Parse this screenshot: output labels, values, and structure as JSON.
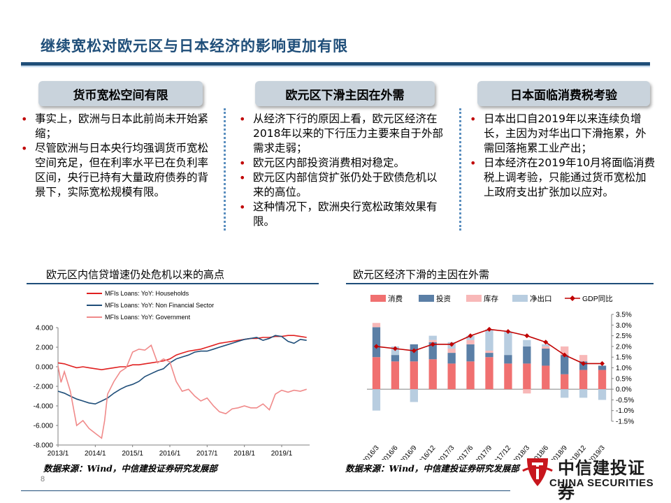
{
  "title": "继续宽松对欧元区与日本经济的影响更加有限",
  "columns": [
    {
      "header": "货币宽松空间有限",
      "bullets": [
        "事实上，欧洲与日本此前尚未开始紧缩；",
        "尽管欧洲与日本央行均强调货币宽松空间充足，但在利率水平已在负利率区间，央行已持有大量政府债券的背景下，实际宽松规模有限。"
      ]
    },
    {
      "header": "欧元区下滑主因在外需",
      "bullets": [
        "从经济下行的原因上看，欧元区经济在2018年以来的下行压力主要来自于外部需求走弱；",
        "欧元区内部投资消费相对稳定。",
        "欧元区内部信贷扩张仍处于欧债危机以来的高位。",
        "这种情况下，欧洲央行宽松政策效果有限。"
      ]
    },
    {
      "header": "日本面临消费税考验",
      "bullets": [
        "日本出口自2019年以来连续负增长，主因为对华出口下滑拖累，外需回落拖累工业产出；",
        "日本经济在2019年10月将面临消费税上调考验，只能通过货币宽松加上政府支出扩张加以应对。"
      ]
    }
  ],
  "chart_left_title": "欧元区内信贷增速仍处危机以来的高点",
  "chart_right_title": "欧元区经济下滑的主因在外需",
  "source_left": "数据来源：Wind，中信建投证券研究发展部",
  "source_right": "数据来源：Wind，中信建投证券研究发展部",
  "page_number": "8",
  "logo": {
    "cn": "中信建投证券",
    "en": "CHINA SECURITIES"
  },
  "chart_data": [
    {
      "type": "line",
      "x_ticks": [
        "2013/1",
        "2014/1",
        "2015/1",
        "2016/1",
        "2017/1",
        "2018/1",
        "2019/1"
      ],
      "y_ticks": [
        "4.000",
        "2.000",
        "0.000",
        "-2.000",
        "-4.000",
        "-6.000",
        "-8.000"
      ],
      "ylim": [
        -8,
        4
      ],
      "x_range": [
        2013.0,
        2019.75
      ],
      "legend_position": "top",
      "series": [
        {
          "name": "MFIs Loans: YoY: Households",
          "color": "#e02020",
          "points": [
            [
              2013.0,
              0.4
            ],
            [
              2013.17,
              0.3
            ],
            [
              2013.33,
              0.1
            ],
            [
              2013.5,
              -0.1
            ],
            [
              2013.67,
              0.0
            ],
            [
              2013.83,
              -0.1
            ],
            [
              2014.0,
              -0.2
            ],
            [
              2014.17,
              -0.3
            ],
            [
              2014.33,
              -0.2
            ],
            [
              2014.5,
              -0.1
            ],
            [
              2014.67,
              0.0
            ],
            [
              2014.83,
              0.0
            ],
            [
              2015.0,
              0.2
            ],
            [
              2015.17,
              0.2
            ],
            [
              2015.33,
              0.3
            ],
            [
              2015.5,
              0.4
            ],
            [
              2015.67,
              0.5
            ],
            [
              2015.83,
              0.6
            ],
            [
              2016.0,
              0.8
            ],
            [
              2016.17,
              1.2
            ],
            [
              2016.33,
              1.4
            ],
            [
              2016.5,
              1.6
            ],
            [
              2016.67,
              1.7
            ],
            [
              2016.83,
              1.8
            ],
            [
              2017.0,
              2.0
            ],
            [
              2017.17,
              2.2
            ],
            [
              2017.33,
              2.4
            ],
            [
              2017.5,
              2.5
            ],
            [
              2017.67,
              2.6
            ],
            [
              2017.83,
              2.7
            ],
            [
              2018.0,
              2.8
            ],
            [
              2018.17,
              2.9
            ],
            [
              2018.33,
              2.9
            ],
            [
              2018.5,
              3.0
            ],
            [
              2018.67,
              3.0
            ],
            [
              2018.83,
              3.1
            ],
            [
              2019.0,
              3.1
            ],
            [
              2019.17,
              3.2
            ],
            [
              2019.33,
              3.2
            ],
            [
              2019.5,
              3.1
            ],
            [
              2019.67,
              3.0
            ]
          ]
        },
        {
          "name": "MFIs Loans: YoY: Non Financial Sector",
          "color": "#1f4e79",
          "points": [
            [
              2013.0,
              -2.5
            ],
            [
              2013.17,
              -2.7
            ],
            [
              2013.33,
              -3.0
            ],
            [
              2013.5,
              -3.3
            ],
            [
              2013.67,
              -3.5
            ],
            [
              2013.83,
              -3.7
            ],
            [
              2014.0,
              -3.8
            ],
            [
              2014.17,
              -3.5
            ],
            [
              2014.33,
              -3.2
            ],
            [
              2014.5,
              -2.7
            ],
            [
              2014.67,
              -2.3
            ],
            [
              2014.83,
              -2.0
            ],
            [
              2015.0,
              -1.8
            ],
            [
              2015.17,
              -1.5
            ],
            [
              2015.33,
              -1.0
            ],
            [
              2015.5,
              -0.7
            ],
            [
              2015.67,
              -0.4
            ],
            [
              2015.83,
              -0.2
            ],
            [
              2016.0,
              0.4
            ],
            [
              2016.17,
              0.8
            ],
            [
              2016.33,
              1.0
            ],
            [
              2016.5,
              1.2
            ],
            [
              2016.67,
              1.5
            ],
            [
              2016.83,
              1.6
            ],
            [
              2017.0,
              1.6
            ],
            [
              2017.17,
              1.8
            ],
            [
              2017.33,
              2.0
            ],
            [
              2017.5,
              2.2
            ],
            [
              2017.67,
              2.4
            ],
            [
              2017.83,
              2.6
            ],
            [
              2018.0,
              2.8
            ],
            [
              2018.17,
              2.9
            ],
            [
              2018.33,
              3.0
            ],
            [
              2018.5,
              2.7
            ],
            [
              2018.67,
              2.9
            ],
            [
              2018.83,
              3.2
            ],
            [
              2019.0,
              3.1
            ],
            [
              2019.17,
              2.6
            ],
            [
              2019.33,
              2.4
            ],
            [
              2019.5,
              2.8
            ],
            [
              2019.67,
              2.7
            ]
          ]
        },
        {
          "name": "MFIs Loans: YoY: Government",
          "color": "#f08a8a",
          "points": [
            [
              2013.0,
              0.1
            ],
            [
              2013.08,
              -1.6
            ],
            [
              2013.17,
              -0.5
            ],
            [
              2013.33,
              -2.5
            ],
            [
              2013.5,
              -6.0
            ],
            [
              2013.67,
              -5.5
            ],
            [
              2013.83,
              -6.3
            ],
            [
              2014.0,
              -6.8
            ],
            [
              2014.17,
              -7.3
            ],
            [
              2014.25,
              -5.5
            ],
            [
              2014.33,
              -2.8
            ],
            [
              2014.5,
              -1.5
            ],
            [
              2014.67,
              -0.5
            ],
            [
              2014.83,
              -0.1
            ],
            [
              2015.0,
              1.5
            ],
            [
              2015.17,
              1.8
            ],
            [
              2015.33,
              1.7
            ],
            [
              2015.5,
              2.2
            ],
            [
              2015.67,
              0.4
            ],
            [
              2015.83,
              0.8
            ],
            [
              2016.0,
              0.5
            ],
            [
              2016.17,
              -1.5
            ],
            [
              2016.33,
              -2.5
            ],
            [
              2016.5,
              -2.3
            ],
            [
              2016.67,
              -3.0
            ],
            [
              2016.83,
              -3.5
            ],
            [
              2017.0,
              -3.2
            ],
            [
              2017.17,
              -4.0
            ],
            [
              2017.33,
              -4.6
            ],
            [
              2017.5,
              -4.8
            ],
            [
              2017.67,
              -4.3
            ],
            [
              2017.83,
              -4.2
            ],
            [
              2018.0,
              -4.0
            ],
            [
              2018.17,
              -4.2
            ],
            [
              2018.33,
              -4.2
            ],
            [
              2018.5,
              -3.8
            ],
            [
              2018.67,
              -4.4
            ],
            [
              2018.83,
              -2.8
            ],
            [
              2019.0,
              -2.4
            ],
            [
              2019.17,
              -2.6
            ],
            [
              2019.33,
              -2.4
            ],
            [
              2019.5,
              -2.5
            ],
            [
              2019.67,
              -2.3
            ]
          ]
        }
      ]
    },
    {
      "type": "bar",
      "stacked": true,
      "categories": [
        "2016/3",
        "2016/6",
        "2016/9",
        "2016/12",
        "2017/3",
        "2017/6",
        "2017/9",
        "2017/12",
        "2018/3",
        "2018/6",
        "2018/9",
        "2018/12",
        "2019/3"
      ],
      "y_ticks": [
        "3.5%",
        "3.0%",
        "2.5%",
        "2.0%",
        "1.5%",
        "1.0%",
        "0.5%",
        "0.0%",
        "-0.5%",
        "-1.0%",
        "-1.5%"
      ],
      "ylim": [
        -1.5,
        3.5
      ],
      "legend_position": "top",
      "series": [
        {
          "name": "消费",
          "color": "#f07070",
          "values": [
            1.5,
            1.3,
            1.3,
            1.4,
            1.2,
            1.3,
            1.5,
            1.2,
            1.2,
            1.1,
            0.7,
            0.9,
            0.9
          ]
        },
        {
          "name": "投资",
          "color": "#5b7fa6",
          "values": [
            1.4,
            0.3,
            0.8,
            0.8,
            0.5,
            0.8,
            0.2,
            0.4,
            0.8,
            0.8,
            0.9,
            0.4,
            0.2
          ]
        },
        {
          "name": "库存",
          "color": "#f8b8b8",
          "values": [
            0.2,
            0.0,
            0.0,
            0.1,
            0.2,
            0.2,
            0.1,
            0.0,
            -0.2,
            0.1,
            0.4,
            0.3,
            0.0
          ]
        },
        {
          "name": "净出口",
          "color": "#b8cde0",
          "values": [
            -1.0,
            0.4,
            -0.6,
            0.2,
            0.3,
            0.2,
            1.0,
            1.1,
            0.3,
            0.1,
            -0.4,
            -0.4,
            -0.5
          ]
        },
        {
          "name": "GDP同比",
          "color": "#c00000",
          "type": "line",
          "values": [
            2.0,
            1.9,
            1.8,
            2.1,
            2.1,
            2.5,
            2.8,
            2.7,
            2.5,
            2.2,
            1.6,
            1.2,
            1.2
          ]
        }
      ]
    }
  ]
}
